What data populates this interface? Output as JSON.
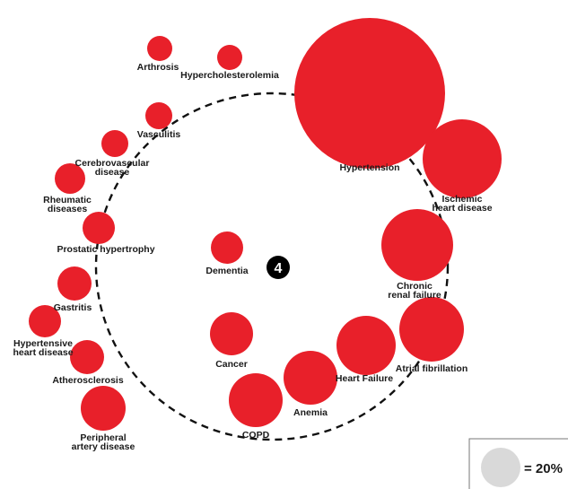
{
  "center_badge": "4",
  "colors": {
    "bubble": "#e8202a",
    "legend_bubble": "#d9d9d9",
    "ring": "#111111"
  },
  "legend": {
    "label": "= 20%"
  },
  "nodes": [
    {
      "key": "hypertension",
      "label": [
        "Hypertension"
      ]
    },
    {
      "key": "ischemic",
      "label": [
        "Ischemic",
        "heart disease"
      ]
    },
    {
      "key": "renal",
      "label": [
        "Chronic",
        "renal failure"
      ]
    },
    {
      "key": "afib",
      "label": [
        "Atrial fibrillation"
      ]
    },
    {
      "key": "heartfailure",
      "label": [
        "Heart Failure"
      ]
    },
    {
      "key": "anemia",
      "label": [
        "Anemia"
      ]
    },
    {
      "key": "copd",
      "label": [
        "COPD"
      ]
    },
    {
      "key": "cancer",
      "label": [
        "Cancer"
      ]
    },
    {
      "key": "dementia",
      "label": [
        "Dementia"
      ]
    },
    {
      "key": "arthrosis",
      "label": [
        "Arthrosis"
      ]
    },
    {
      "key": "hyperchol",
      "label": [
        "Hypercholesterolemia"
      ]
    },
    {
      "key": "vasculitis",
      "label": [
        "Vasculitis"
      ]
    },
    {
      "key": "cerebro",
      "label": [
        "Cerebrovascular",
        "disease"
      ]
    },
    {
      "key": "rheumatic",
      "label": [
        "Rheumatic",
        "diseases"
      ]
    },
    {
      "key": "prostatic",
      "label": [
        "Prostatic hypertrophy"
      ]
    },
    {
      "key": "gastritis",
      "label": [
        "Gastritis"
      ]
    },
    {
      "key": "hypertensive",
      "label": [
        "Hypertensive",
        "heart disease"
      ]
    },
    {
      "key": "athero",
      "label": [
        "Atherosclerosis"
      ]
    },
    {
      "key": "peripheral",
      "label": [
        "Peripheral",
        "artery disease"
      ]
    }
  ]
}
